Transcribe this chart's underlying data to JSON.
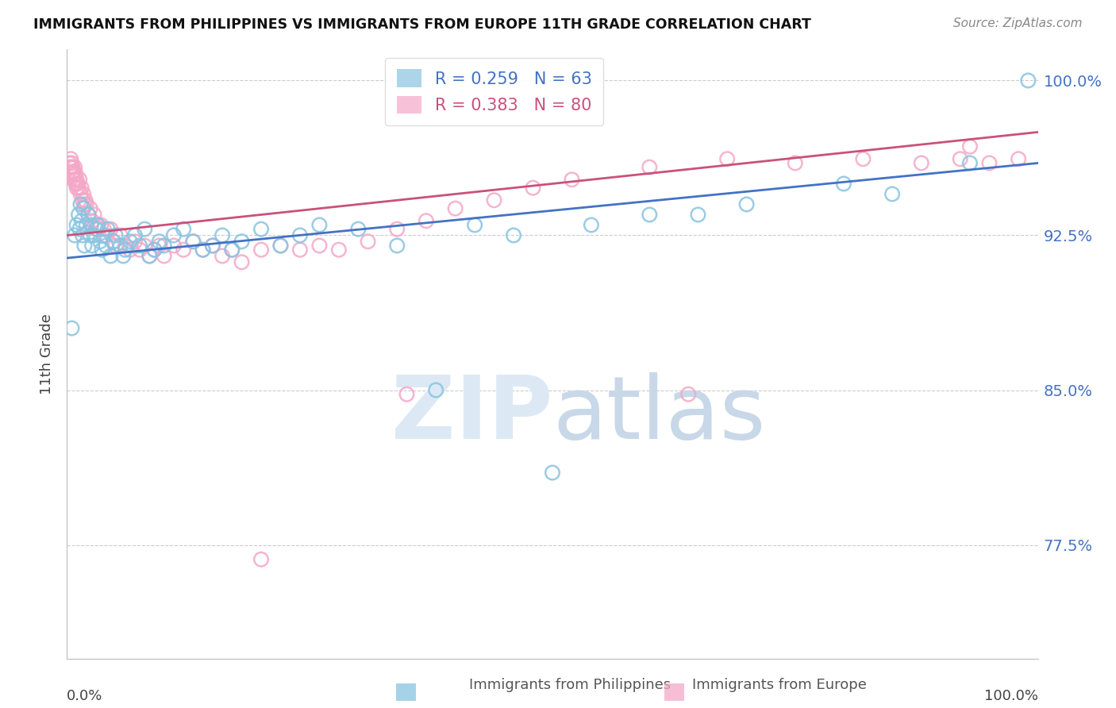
{
  "title": "IMMIGRANTS FROM PHILIPPINES VS IMMIGRANTS FROM EUROPE 11TH GRADE CORRELATION CHART",
  "source": "Source: ZipAtlas.com",
  "ylabel": "11th Grade",
  "xlim": [
    0.0,
    1.0
  ],
  "ylim": [
    0.72,
    1.015
  ],
  "legend_blue_r": 0.259,
  "legend_blue_n": 63,
  "legend_pink_r": 0.383,
  "legend_pink_n": 80,
  "blue_color": "#89c4e1",
  "pink_color": "#f4a8c7",
  "blue_line_color": "#4472c4",
  "pink_line_color": "#c9527a",
  "watermark_color": "#dce9f5",
  "background_color": "#ffffff",
  "grid_color": "#cccccc",
  "blue_x": [
    0.005,
    0.008,
    0.01,
    0.012,
    0.013,
    0.014,
    0.015,
    0.016,
    0.017,
    0.018,
    0.02,
    0.022,
    0.024,
    0.025,
    0.026,
    0.028,
    0.03,
    0.032,
    0.034,
    0.036,
    0.038,
    0.04,
    0.042,
    0.045,
    0.048,
    0.05,
    0.055,
    0.058,
    0.06,
    0.065,
    0.07,
    0.075,
    0.08,
    0.085,
    0.09,
    0.095,
    0.1,
    0.11,
    0.12,
    0.13,
    0.14,
    0.15,
    0.16,
    0.17,
    0.18,
    0.2,
    0.22,
    0.24,
    0.26,
    0.3,
    0.34,
    0.38,
    0.42,
    0.46,
    0.5,
    0.54,
    0.6,
    0.65,
    0.7,
    0.8,
    0.85,
    0.93,
    0.99
  ],
  "blue_y": [
    0.88,
    0.925,
    0.93,
    0.935,
    0.928,
    0.94,
    0.932,
    0.925,
    0.938,
    0.92,
    0.93,
    0.935,
    0.925,
    0.93,
    0.92,
    0.925,
    0.928,
    0.93,
    0.922,
    0.918,
    0.925,
    0.92,
    0.928,
    0.915,
    0.922,
    0.925,
    0.92,
    0.915,
    0.918,
    0.922,
    0.925,
    0.92,
    0.928,
    0.915,
    0.918,
    0.922,
    0.92,
    0.925,
    0.928,
    0.922,
    0.918,
    0.92,
    0.925,
    0.918,
    0.922,
    0.928,
    0.92,
    0.925,
    0.93,
    0.928,
    0.92,
    0.85,
    0.93,
    0.925,
    0.81,
    0.93,
    0.935,
    0.935,
    0.94,
    0.95,
    0.945,
    0.96,
    1.0
  ],
  "pink_x": [
    0.002,
    0.003,
    0.004,
    0.004,
    0.005,
    0.005,
    0.006,
    0.006,
    0.007,
    0.007,
    0.008,
    0.008,
    0.009,
    0.009,
    0.01,
    0.01,
    0.011,
    0.012,
    0.013,
    0.014,
    0.015,
    0.016,
    0.017,
    0.018,
    0.019,
    0.02,
    0.022,
    0.024,
    0.026,
    0.028,
    0.03,
    0.032,
    0.035,
    0.038,
    0.04,
    0.045,
    0.048,
    0.05,
    0.055,
    0.06,
    0.065,
    0.07,
    0.075,
    0.08,
    0.085,
    0.09,
    0.095,
    0.1,
    0.11,
    0.12,
    0.13,
    0.14,
    0.15,
    0.16,
    0.17,
    0.18,
    0.2,
    0.22,
    0.24,
    0.26,
    0.28,
    0.31,
    0.34,
    0.37,
    0.4,
    0.44,
    0.48,
    0.52,
    0.6,
    0.68,
    0.75,
    0.82,
    0.88,
    0.92,
    0.95,
    0.98,
    0.2,
    0.35,
    0.64,
    0.93
  ],
  "pink_y": [
    0.96,
    0.958,
    0.962,
    0.958,
    0.955,
    0.96,
    0.955,
    0.958,
    0.952,
    0.956,
    0.952,
    0.958,
    0.95,
    0.955,
    0.948,
    0.952,
    0.95,
    0.948,
    0.952,
    0.945,
    0.948,
    0.942,
    0.945,
    0.94,
    0.942,
    0.94,
    0.935,
    0.938,
    0.932,
    0.935,
    0.93,
    0.928,
    0.93,
    0.928,
    0.925,
    0.928,
    0.922,
    0.92,
    0.925,
    0.92,
    0.918,
    0.922,
    0.918,
    0.92,
    0.915,
    0.918,
    0.92,
    0.915,
    0.92,
    0.918,
    0.922,
    0.918,
    0.92,
    0.915,
    0.918,
    0.912,
    0.918,
    0.92,
    0.918,
    0.92,
    0.918,
    0.922,
    0.928,
    0.932,
    0.938,
    0.942,
    0.948,
    0.952,
    0.958,
    0.962,
    0.96,
    0.962,
    0.96,
    0.962,
    0.96,
    0.962,
    0.768,
    0.848,
    0.848,
    0.968
  ],
  "ytick_vals": [
    0.775,
    0.85,
    0.925,
    1.0
  ],
  "ytick_labels": [
    "77.5%",
    "85.0%",
    "92.5%",
    "100.0%"
  ]
}
